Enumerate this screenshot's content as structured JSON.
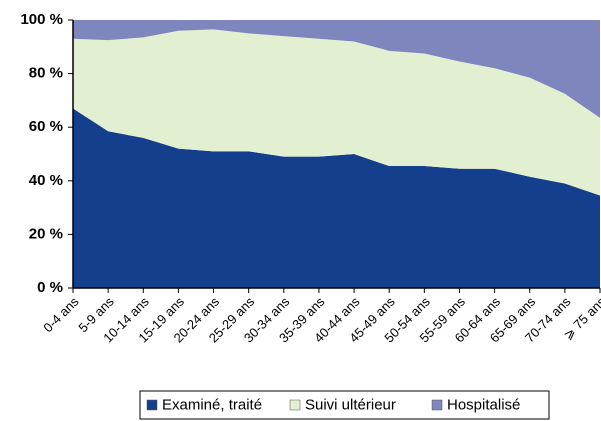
{
  "chart_data": {
    "type": "stacked_area",
    "categories": [
      "0-4 ans",
      "5-9 ans",
      "10-14 ans",
      "15-19 ans",
      "20-24 ans",
      "25-29 ans",
      "30-34 ans",
      "35-39 ans",
      "40-44 ans",
      "45-49 ans",
      "50-54 ans",
      "55-59 ans",
      "60-64 ans",
      "65-69 ans",
      "70-74 ans",
      "⩾ 75 ans"
    ],
    "series": [
      {
        "name": "Examiné, traité",
        "color": "#133f8c",
        "values": [
          67,
          58.5,
          56,
          52,
          51,
          51,
          49,
          49,
          50,
          45.5,
          45.5,
          44.5,
          44.5,
          41.5,
          39,
          34.5
        ]
      },
      {
        "name": "Suivi ultérieur",
        "color": "#e2efd0",
        "values": [
          26,
          34,
          37.5,
          44,
          45.5,
          44,
          45,
          44,
          42,
          43,
          42,
          40,
          37.5,
          37,
          33.5,
          29
        ]
      },
      {
        "name": "Hospitalisé",
        "color": "#7f85bd",
        "values": [
          7,
          7.5,
          6.5,
          4,
          3.5,
          5,
          6,
          7,
          8,
          11.5,
          12.5,
          15.5,
          18,
          21.5,
          27.5,
          36.5
        ]
      }
    ],
    "ylim": [
      0,
      100
    ],
    "yticks": [
      {
        "value": 0,
        "label": "0 %"
      },
      {
        "value": 20,
        "label": "20 %"
      },
      {
        "value": 40,
        "label": "40 %"
      },
      {
        "value": 60,
        "label": "60 %"
      },
      {
        "value": 80,
        "label": "80 %"
      },
      {
        "value": 100,
        "label": "100 %"
      }
    ],
    "legend": "bottom"
  }
}
